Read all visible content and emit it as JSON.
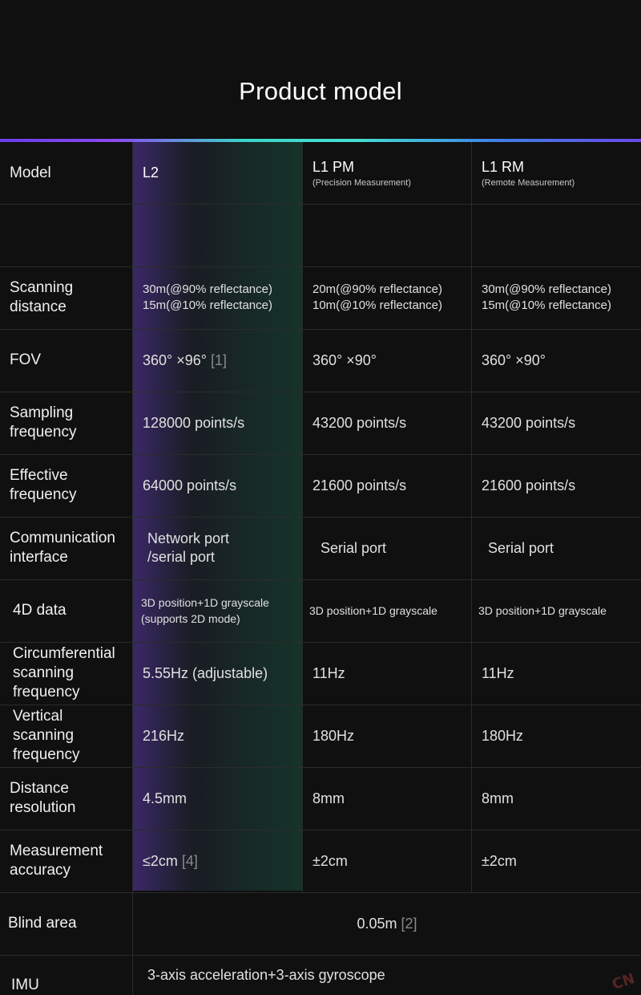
{
  "title": "Product model",
  "colors": {
    "accent_gradient": [
      "#6a3de8",
      "#3ad6c8",
      "#3f7ee6"
    ],
    "background": "#101010"
  },
  "header": {
    "label": "Model",
    "l2": "L2",
    "l1pm": "L1 PM",
    "l1pm_sub": "(Precision Measurement)",
    "l1rm": "L1 RM",
    "l1rm_sub": "(Remote Measurement)"
  },
  "rows": {
    "scanning_distance": {
      "label_1": "Scanning",
      "label_2": "distance",
      "l2_1": "30m(@90% reflectance)",
      "l2_2": "15m(@10%  reflectance)",
      "pm_1": "20m(@90% reflectance)",
      "pm_2": "10m(@10%  reflectance)",
      "rm_1": "30m(@90% reflectance)",
      "rm_2": "15m(@10%  reflectance)"
    },
    "fov": {
      "label": "FOV",
      "l2": "360° ×96°",
      "l2_note": "[1]",
      "pm": "360° ×90°",
      "rm": "360° ×90°"
    },
    "sampling": {
      "label_1": "Sampling",
      "label_2": "frequency",
      "l2": "128000 points/s",
      "pm": "43200  points/s",
      "rm": "43200 points/s"
    },
    "effective": {
      "label_1": "Effective",
      "label_2": "frequency",
      "l2": "64000  points/s",
      "pm": "21600  points/s",
      "rm": "21600  points/s"
    },
    "comm": {
      "label_1": "Communication",
      "label_2": "interface",
      "l2_1": "Network port",
      "l2_2": "/serial port",
      "pm": "Serial port",
      "rm": "Serial port"
    },
    "data4d": {
      "label": "4D data",
      "l2_1": "3D position+1D grayscale",
      "l2_2": "(supports 2D mode)",
      "pm": "3D position+1D grayscale",
      "rm": "3D position+1D grayscale"
    },
    "circ": {
      "label_1": "Circumferential",
      "label_2": "scanning",
      "label_3": "frequency",
      "l2": "5.55Hz (adjustable)",
      "pm": "11Hz",
      "rm": "11Hz"
    },
    "vert": {
      "label_1": "Vertical",
      "label_2": "scanning",
      "label_3": "frequency",
      "l2": "216Hz",
      "pm": "180Hz",
      "rm": "180Hz"
    },
    "dist_res": {
      "label_1": "Distance",
      "label_2": "resolution",
      "l2": "4.5mm",
      "pm": "8mm",
      "rm": "8mm"
    },
    "accuracy": {
      "label_1": "Measurement",
      "label_2": "accuracy",
      "l2": "≤2cm",
      "l2_note": "[4]",
      "pm": "±2cm",
      "rm": "±2cm"
    },
    "blind": {
      "label": "Blind area",
      "value": "0.05m",
      "note": "[2]"
    },
    "imu": {
      "label": "IMU",
      "value": "3-axis acceleration+3-axis gyroscope"
    }
  }
}
